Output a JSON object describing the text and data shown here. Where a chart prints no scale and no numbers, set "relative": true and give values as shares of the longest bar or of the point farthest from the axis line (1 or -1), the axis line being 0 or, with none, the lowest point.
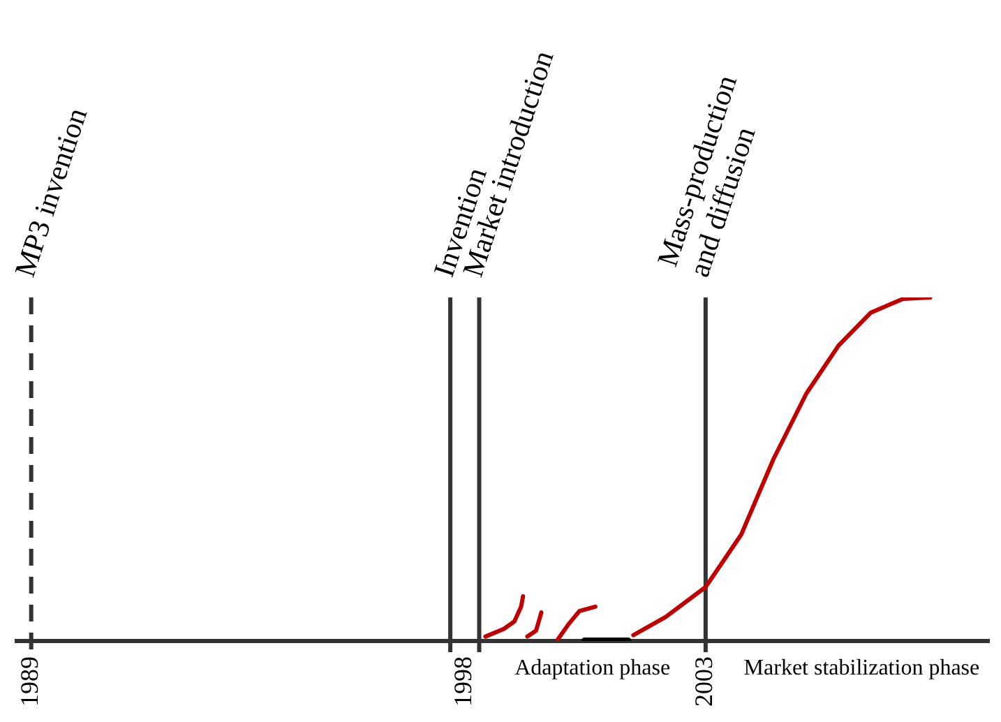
{
  "chart_data": {
    "type": "line",
    "relative": true,
    "xlim": [
      1988.7,
      2008.9
    ],
    "xticks": [
      1989,
      1998,
      2003
    ],
    "series": [
      {
        "color": "#c00000",
        "x": [
          1998.43,
          1998.81,
          1999.03,
          1999.17,
          1999.21
        ],
        "values": [
          0.013,
          0.035,
          0.057,
          0.1,
          0.13
        ]
      },
      {
        "color": "#c00000",
        "x": [
          1999.3,
          1999.48,
          1999.59
        ],
        "values": [
          0.013,
          0.03,
          0.083
        ]
      },
      {
        "color": "#c00000",
        "x": [
          1999.93,
          2000.15,
          2000.38,
          2000.71
        ],
        "values": [
          0.004,
          0.048,
          0.087,
          0.1
        ]
      },
      {
        "color": "#000000",
        "x": [
          2000.49,
          2001.39
        ],
        "values": [
          0,
          0
        ]
      },
      {
        "color": "#c00000",
        "x": [
          2001.5,
          2002.17,
          2003,
          2003.74,
          2004.41,
          2005.09,
          2005.76,
          2006.43,
          2007.1,
          2007.66
        ],
        "values": [
          0.017,
          0.07,
          0.157,
          0.31,
          0.53,
          0.72,
          0.86,
          0.956,
          0.996,
          1
        ]
      }
    ],
    "ref_lines": [
      {
        "axis": "x",
        "value": 1989,
        "label": "MP3 invention",
        "line_style": "dashed"
      },
      {
        "axis": "x",
        "value": 1997.7,
        "label": "Invention",
        "line_style": "solid"
      },
      {
        "axis": "x",
        "value": 1998.3,
        "label": "Market introduction",
        "line_style": "solid"
      },
      {
        "axis": "x",
        "value": 2003,
        "label": "Mass-production and diffusion",
        "line_style": "solid"
      }
    ],
    "annotations": [
      "Adaptation phase",
      "Market stabilization phase"
    ],
    "grid": false,
    "legend": false
  }
}
